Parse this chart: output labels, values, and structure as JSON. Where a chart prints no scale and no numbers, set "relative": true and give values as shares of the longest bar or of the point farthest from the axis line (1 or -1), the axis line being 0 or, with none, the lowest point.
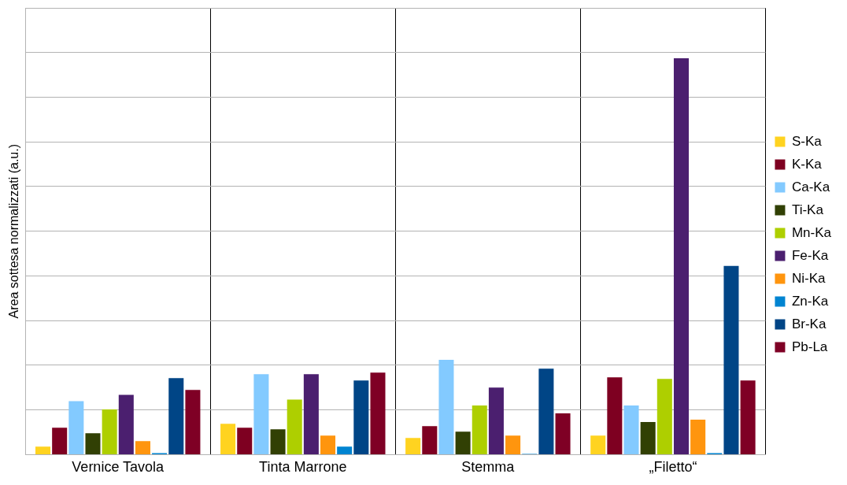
{
  "chart_data": {
    "type": "bar",
    "ylabel": "Area sottesa normalizzati (a.u.)",
    "categories": [
      "Vernice Tavola",
      "Tinta Marrone",
      "Stemma",
      "„Filetto“"
    ],
    "relative": true,
    "grid": true,
    "legend": "right",
    "series": [
      {
        "name": "S-Ka",
        "color": "#ffd320",
        "values": [
          0.02,
          0.078,
          0.042,
          0.048
        ]
      },
      {
        "name": "K-Ka",
        "color": "#7e0021",
        "values": [
          0.068,
          0.068,
          0.072,
          0.195
        ]
      },
      {
        "name": "Ca-Ka",
        "color": "#83caff",
        "values": [
          0.135,
          0.203,
          0.239,
          0.124
        ]
      },
      {
        "name": "Ti-Ka",
        "color": "#314004",
        "values": [
          0.054,
          0.064,
          0.058,
          0.082
        ]
      },
      {
        "name": "Mn-Ka",
        "color": "#aecf00",
        "values": [
          0.114,
          0.139,
          0.124,
          0.191
        ]
      },
      {
        "name": "Fe-Ka",
        "color": "#4b1f6f",
        "values": [
          0.151,
          0.203,
          0.169,
          1
        ]
      },
      {
        "name": "Ni-Ka",
        "color": "#ff950e",
        "values": [
          0.034,
          0.048,
          0.048,
          0.088
        ]
      },
      {
        "name": "Zn-Ka",
        "color": "#0084d1",
        "values": [
          0.004,
          0.02,
          0.002,
          0.004
        ]
      },
      {
        "name": "Br-Ka",
        "color": "#004586",
        "values": [
          0.193,
          0.187,
          0.217,
          0.476
        ]
      },
      {
        "name": "Pb-La",
        "color": "#7f0025",
        "values": [
          0.163,
          0.207,
          0.104,
          0.187
        ]
      }
    ]
  }
}
